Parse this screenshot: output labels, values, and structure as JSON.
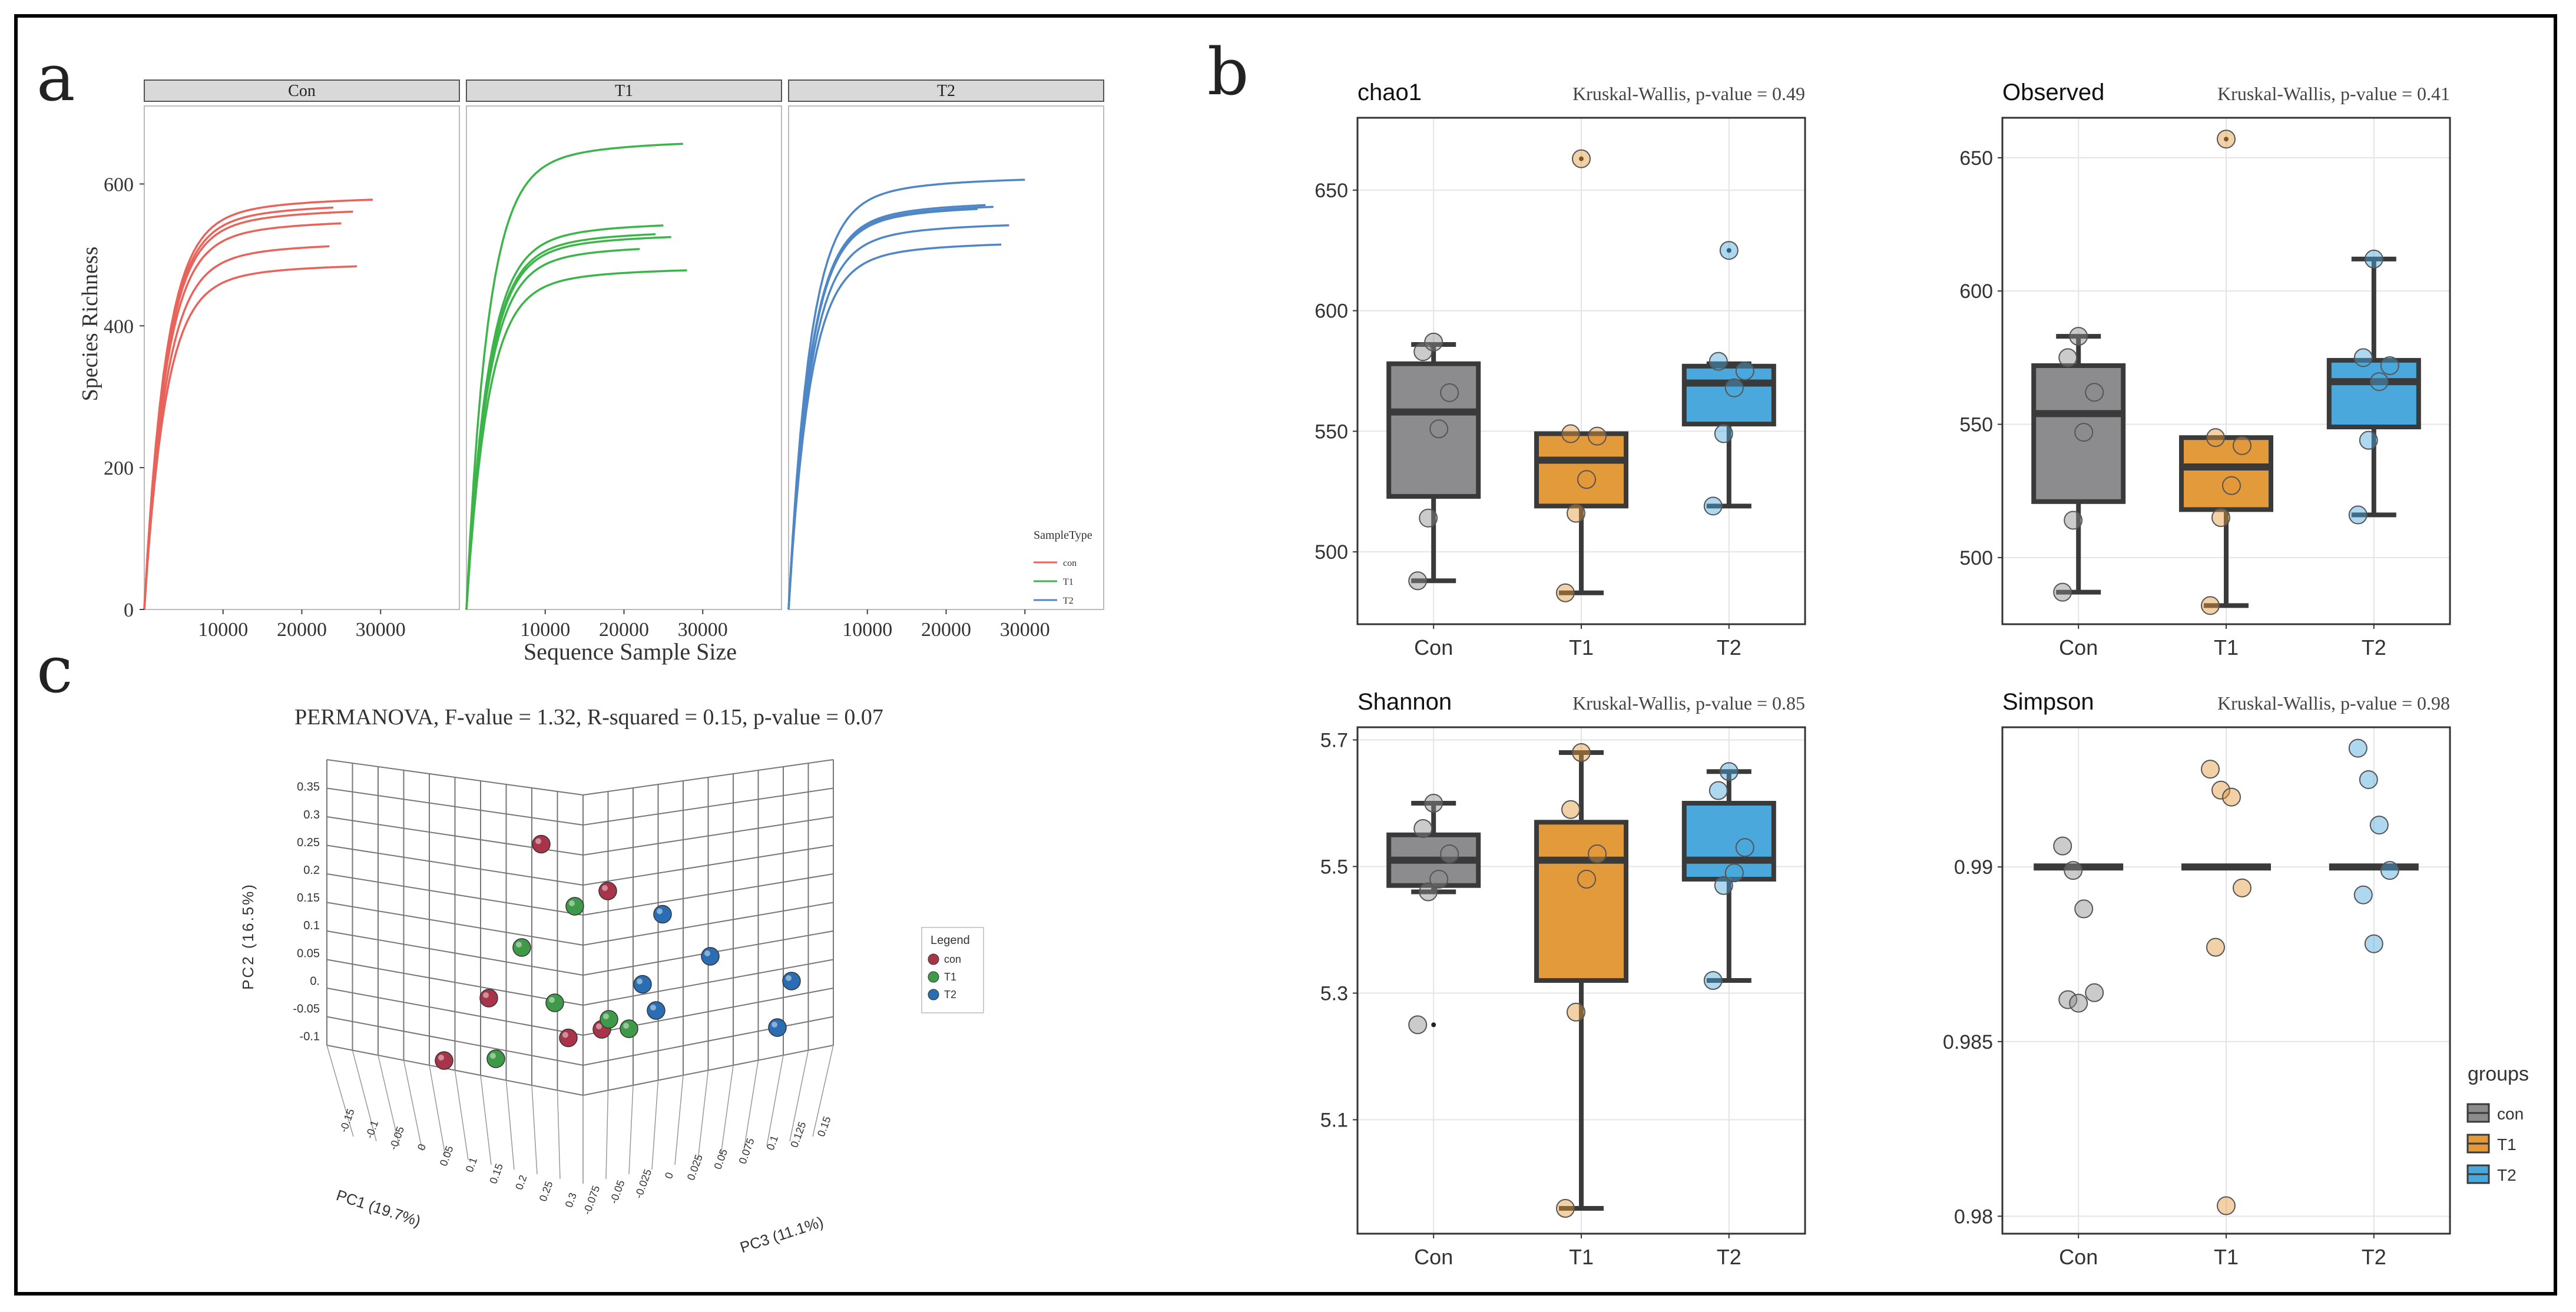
{
  "figure": {
    "panel_labels": [
      "a",
      "b",
      "c"
    ]
  },
  "colors": {
    "con": "#e8635a",
    "t1": "#3cb44a",
    "t2": "#4f86c6",
    "box_con": "#8c8c8e",
    "box_t1": "#e39a3b",
    "box_t2": "#4aa8dc",
    "sphere_con": "#a8344a",
    "sphere_t1": "#3e9a48",
    "sphere_t2": "#2b6db3"
  },
  "chart_data": [
    {
      "type": "line",
      "panel": "a",
      "facets": [
        "Con",
        "T1",
        "T2"
      ],
      "xlabel": "Sequence Sample Size",
      "ylabel": "Species Richness",
      "x_ticks": [
        10000,
        20000,
        30000
      ],
      "y_ticks": [
        0,
        200,
        400,
        600
      ],
      "xlim": [
        0,
        40000
      ],
      "ylim": [
        0,
        700
      ],
      "legend": {
        "title": "SampleType",
        "entries": [
          "con",
          "T1",
          "T2"
        ],
        "placement": "bottom-right"
      },
      "series": [
        {
          "facet": "Con",
          "group": "con",
          "curves": [
            {
              "max_x": 29000,
              "plateau": 582
            },
            {
              "max_x": 26500,
              "plateau": 566
            },
            {
              "max_x": 25000,
              "plateau": 550
            },
            {
              "max_x": 23500,
              "plateau": 518
            },
            {
              "max_x": 27000,
              "plateau": 488
            },
            {
              "max_x": 24000,
              "plateau": 573
            }
          ]
        },
        {
          "facet": "T1",
          "group": "T1",
          "curves": [
            {
              "max_x": 27500,
              "plateau": 662
            },
            {
              "max_x": 25000,
              "plateau": 547
            },
            {
              "max_x": 24000,
              "plateau": 535
            },
            {
              "max_x": 26000,
              "plateau": 530
            },
            {
              "max_x": 22000,
              "plateau": 515
            },
            {
              "max_x": 28000,
              "plateau": 482
            }
          ]
        },
        {
          "facet": "T2",
          "group": "T2",
          "curves": [
            {
              "max_x": 30000,
              "plateau": 610
            },
            {
              "max_x": 25000,
              "plateau": 576
            },
            {
              "max_x": 26000,
              "plateau": 573
            },
            {
              "max_x": 28000,
              "plateau": 546
            },
            {
              "max_x": 27000,
              "plateau": 519
            },
            {
              "max_x": 24000,
              "plateau": 571
            }
          ]
        }
      ]
    },
    {
      "type": "box",
      "panel": "b",
      "metric": "chao1",
      "test": "Kruskal-Wallis, p-value = 0.49",
      "categories": [
        "Con",
        "T1",
        "T2"
      ],
      "ylim": [
        470,
        680
      ],
      "y_ticks": [
        500,
        550,
        600,
        650
      ],
      "boxes": [
        {
          "q1": 523,
          "median": 558,
          "q3": 578,
          "whisker_low": 488,
          "whisker_high": 586,
          "points": [
            488,
            514,
            551,
            566,
            583,
            587
          ]
        },
        {
          "q1": 519,
          "median": 538,
          "q3": 549,
          "whisker_low": 483,
          "whisker_high": 549,
          "outliers": [
            663
          ],
          "points": [
            483,
            516,
            530,
            548,
            549,
            663
          ]
        },
        {
          "q1": 553,
          "median": 570,
          "q3": 577,
          "whisker_low": 519,
          "whisker_high": 578,
          "outliers": [
            625
          ],
          "points": [
            519,
            549,
            568,
            575,
            579,
            625
          ]
        }
      ]
    },
    {
      "type": "box",
      "panel": "b",
      "metric": "Observed",
      "test": "Kruskal-Wallis, p-value = 0.41",
      "categories": [
        "Con",
        "T1",
        "T2"
      ],
      "ylim": [
        475,
        665
      ],
      "y_ticks": [
        500,
        550,
        600,
        650
      ],
      "boxes": [
        {
          "q1": 521,
          "median": 554,
          "q3": 572,
          "whisker_low": 487,
          "whisker_high": 583,
          "points": [
            487,
            514,
            547,
            562,
            575,
            583
          ]
        },
        {
          "q1": 518,
          "median": 534,
          "q3": 545,
          "whisker_low": 482,
          "whisker_high": 545,
          "outliers": [
            657
          ],
          "points": [
            482,
            515,
            527,
            542,
            545,
            657
          ]
        },
        {
          "q1": 549,
          "median": 566,
          "q3": 574,
          "whisker_low": 516,
          "whisker_high": 612,
          "points": [
            516,
            544,
            566,
            572,
            575,
            612
          ]
        }
      ]
    },
    {
      "type": "box",
      "panel": "b",
      "metric": "Shannon",
      "test": "Kruskal-Wallis, p-value = 0.85",
      "categories": [
        "Con",
        "T1",
        "T2"
      ],
      "ylim": [
        4.92,
        5.72
      ],
      "y_ticks": [
        5.1,
        5.3,
        5.5,
        5.7
      ],
      "boxes": [
        {
          "q1": 5.47,
          "median": 5.51,
          "q3": 5.55,
          "whisker_low": 5.46,
          "whisker_high": 5.6,
          "outliers": [
            5.25
          ],
          "points": [
            5.25,
            5.46,
            5.48,
            5.52,
            5.56,
            5.6
          ]
        },
        {
          "q1": 5.32,
          "median": 5.51,
          "q3": 5.57,
          "whisker_low": 4.96,
          "whisker_high": 5.68,
          "points": [
            4.96,
            5.27,
            5.48,
            5.52,
            5.59,
            5.68
          ]
        },
        {
          "q1": 5.48,
          "median": 5.51,
          "q3": 5.6,
          "whisker_low": 5.32,
          "whisker_high": 5.65,
          "points": [
            5.32,
            5.47,
            5.49,
            5.53,
            5.62,
            5.65
          ]
        }
      ]
    },
    {
      "type": "box",
      "panel": "b",
      "metric": "Simpson",
      "test": "Kruskal-Wallis, p-value = 0.98",
      "categories": [
        "Con",
        "T1",
        "T2"
      ],
      "ylim": [
        0.9795,
        0.994
      ],
      "y_ticks": [
        0.98,
        0.985,
        0.99
      ],
      "legend": {
        "title": "groups",
        "entries": [
          "con",
          "T1",
          "T2"
        ]
      },
      "boxes": [
        {
          "q1": 0.99,
          "median": 0.99,
          "q3": 0.99,
          "whisker_low": 0.99,
          "whisker_high": 0.99,
          "points": [
            0.9906,
            0.9899,
            0.9888,
            0.9864,
            0.9862,
            0.9861
          ]
        },
        {
          "q1": 0.99,
          "median": 0.99,
          "q3": 0.99,
          "whisker_low": 0.99,
          "whisker_high": 0.99,
          "points": [
            0.9928,
            0.9922,
            0.992,
            0.9894,
            0.9877,
            0.9803
          ]
        },
        {
          "q1": 0.99,
          "median": 0.99,
          "q3": 0.99,
          "whisker_low": 0.99,
          "whisker_high": 0.99,
          "points": [
            0.9934,
            0.9925,
            0.9912,
            0.9899,
            0.9892,
            0.9878
          ]
        }
      ]
    },
    {
      "type": "scatter",
      "panel": "c",
      "title": "PERMANOVA, F-value = 1.32, R-squared = 0.15, p-value = 0.07",
      "axes": {
        "pc1": {
          "label": "PC1 (19.7%)",
          "ticks": [
            "-0.15",
            "-0.1",
            "-0.05",
            "0",
            "0.05",
            "0.1",
            "0.15",
            "0.2",
            "0.25",
            "0.3"
          ]
        },
        "pc2": {
          "label": "PC2 (16.5%)",
          "ticks": [
            "-0.1",
            "-0.05",
            "0.",
            "0.05",
            "0.1",
            "0.15",
            "0.2",
            "0.25",
            "0.3",
            "0.35"
          ]
        },
        "pc3": {
          "label": "PC3 (11.1%)",
          "ticks": [
            "-0.075",
            "-0.05",
            "-0.025",
            "0",
            "0.025",
            "0.05",
            "0.075",
            "0.1",
            "0.125",
            "0.15"
          ]
        }
      },
      "legend": {
        "title": "Legend",
        "entries": [
          "con",
          "T1",
          "T2"
        ],
        "placement": "right"
      },
      "groups": [
        {
          "name": "con",
          "points": [
            {
              "pc1": 0.05,
              "pc2": 0.16,
              "pc3": -0.08
            },
            {
              "pc1": 0.12,
              "pc2": 0.11,
              "pc3": -0.05
            },
            {
              "pc1": -0.02,
              "pc2": -0.02,
              "pc3": -0.09
            },
            {
              "pc1": 0.1,
              "pc2": -0.05,
              "pc3": -0.04
            },
            {
              "pc1": 0.07,
              "pc2": -0.06,
              "pc3": -0.06
            },
            {
              "pc1": -0.1,
              "pc2": -0.1,
              "pc3": -0.08
            }
          ]
        },
        {
          "name": "T1",
          "points": [
            {
              "pc1": 0.08,
              "pc2": 0.09,
              "pc3": -0.06
            },
            {
              "pc1": 0.02,
              "pc2": 0.04,
              "pc3": -0.08
            },
            {
              "pc1": 0.06,
              "pc2": -0.02,
              "pc3": -0.07
            },
            {
              "pc1": 0.1,
              "pc2": -0.04,
              "pc3": -0.03
            },
            {
              "pc1": -0.02,
              "pc2": -0.09,
              "pc3": -0.08
            },
            {
              "pc1": 0.12,
              "pc2": -0.05,
              "pc3": -0.02
            }
          ]
        },
        {
          "name": "T2",
          "points": [
            {
              "pc1": 0.15,
              "pc2": 0.08,
              "pc3": 0.0
            },
            {
              "pc1": 0.13,
              "pc2": 0.0,
              "pc3": -0.01
            },
            {
              "pc1": 0.18,
              "pc2": 0.03,
              "pc3": 0.04
            },
            {
              "pc1": 0.14,
              "pc2": -0.03,
              "pc3": 0.0
            },
            {
              "pc1": 0.24,
              "pc2": 0.0,
              "pc3": 0.1
            },
            {
              "pc1": 0.24,
              "pc2": -0.05,
              "pc3": 0.08
            }
          ]
        }
      ]
    }
  ]
}
